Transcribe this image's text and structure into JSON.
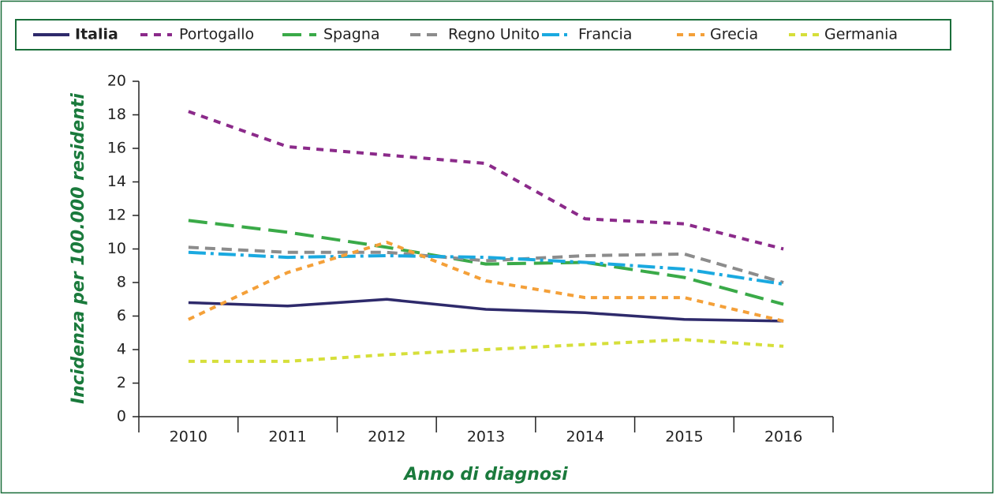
{
  "chart_data": {
    "type": "line",
    "xlabel": "Anno di diagnosi",
    "ylabel": "Incidenza per 100.000 residenti",
    "categories": [
      "2010",
      "2011",
      "2012",
      "2013",
      "2014",
      "2015",
      "2016"
    ],
    "ylim": [
      0,
      20
    ],
    "yticks": [
      0,
      2,
      4,
      6,
      8,
      10,
      12,
      14,
      16,
      18,
      20
    ],
    "series": [
      {
        "name": "Italia",
        "color": "#2e2a6b",
        "dash": "none",
        "values": [
          6.8,
          6.6,
          7.0,
          6.4,
          6.2,
          5.8,
          5.7
        ]
      },
      {
        "name": "Portogallo",
        "color": "#8b2a8a",
        "dash": "9,8",
        "values": [
          18.2,
          16.1,
          15.6,
          15.1,
          11.8,
          11.5,
          10.0
        ]
      },
      {
        "name": "Spagna",
        "color": "#3aaa48",
        "dash": "24,10",
        "values": [
          11.7,
          11.0,
          10.1,
          9.1,
          9.2,
          8.3,
          6.7
        ]
      },
      {
        "name": "Regno Unito",
        "color": "#8c8c8c",
        "dash": "13,8",
        "values": [
          10.1,
          9.8,
          9.8,
          9.3,
          9.6,
          9.7,
          8.0
        ]
      },
      {
        "name": "Francia",
        "color": "#1aa9e0",
        "dash": "22,6,4,6",
        "values": [
          9.8,
          9.5,
          9.6,
          9.5,
          9.2,
          8.8,
          7.9
        ]
      },
      {
        "name": "Grecia",
        "color": "#f4a039",
        "dash": "8,7",
        "values": [
          5.8,
          8.6,
          10.4,
          8.1,
          7.1,
          7.1,
          5.7
        ]
      },
      {
        "name": "Germania",
        "color": "#d6df3a",
        "dash": "8,7",
        "values": [
          3.3,
          3.3,
          3.7,
          4.0,
          4.3,
          4.6,
          4.2
        ]
      }
    ]
  }
}
